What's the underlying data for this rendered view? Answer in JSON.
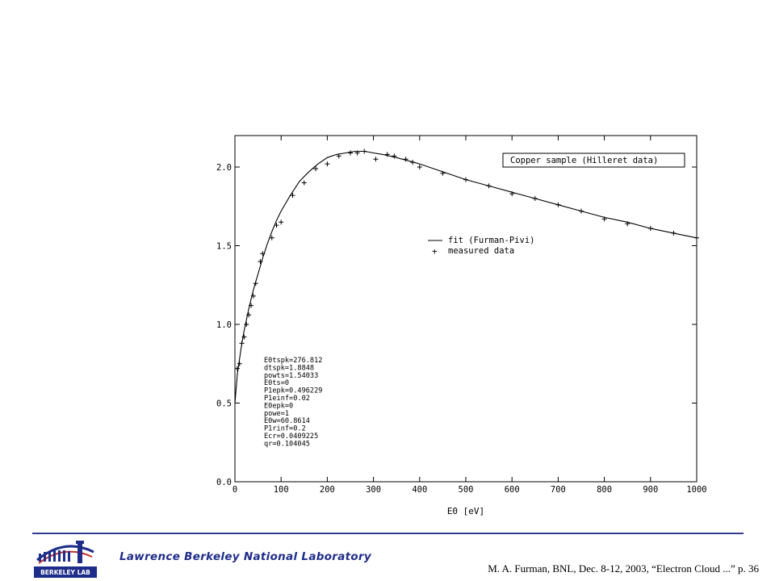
{
  "chart_data": {
    "type": "line",
    "title": "Copper sample (Hilleret data)",
    "xlabel": "E0 [eV]",
    "ylabel": "",
    "xlim": [
      0,
      1000
    ],
    "ylim": [
      0,
      2.2
    ],
    "x_ticks": [
      "0",
      "100",
      "200",
      "300",
      "400",
      "500",
      "600",
      "700",
      "800",
      "900",
      "1000"
    ],
    "y_ticks": [
      "0.0",
      "0.5",
      "1.0",
      "1.5",
      "2.0"
    ],
    "grid": false,
    "legend_position": "center-right",
    "series": [
      {
        "name": "fit (Furman-Pivi)",
        "style": "line",
        "x": [
          0,
          5,
          10,
          15,
          20,
          25,
          30,
          35,
          40,
          45,
          50,
          60,
          70,
          80,
          90,
          100,
          120,
          140,
          160,
          180,
          200,
          220,
          240,
          260,
          280,
          300,
          320,
          350,
          400,
          450,
          500,
          550,
          600,
          650,
          700,
          750,
          800,
          850,
          900,
          950,
          1000
        ],
        "y": [
          0.5,
          0.68,
          0.78,
          0.88,
          0.96,
          1.03,
          1.1,
          1.16,
          1.22,
          1.27,
          1.32,
          1.42,
          1.51,
          1.59,
          1.66,
          1.72,
          1.82,
          1.91,
          1.97,
          2.02,
          2.06,
          2.08,
          2.09,
          2.1,
          2.1,
          2.09,
          2.08,
          2.06,
          2.02,
          1.97,
          1.92,
          1.88,
          1.84,
          1.8,
          1.76,
          1.72,
          1.68,
          1.65,
          1.61,
          1.58,
          1.55
        ]
      },
      {
        "name": "measured data",
        "style": "markers",
        "x": [
          5,
          10,
          15,
          20,
          25,
          30,
          35,
          40,
          45,
          55,
          60,
          80,
          90,
          100,
          125,
          150,
          175,
          200,
          225,
          250,
          265,
          280,
          305,
          330,
          345,
          370,
          385,
          400,
          450,
          500,
          550,
          600,
          650,
          700,
          750,
          800,
          850,
          900,
          950,
          1000
        ],
        "y": [
          0.72,
          0.75,
          0.88,
          0.92,
          1.0,
          1.06,
          1.12,
          1.18,
          1.26,
          1.4,
          1.45,
          1.55,
          1.63,
          1.65,
          1.82,
          1.9,
          1.99,
          2.02,
          2.07,
          2.09,
          2.09,
          2.1,
          2.05,
          2.08,
          2.07,
          2.05,
          2.03,
          2.0,
          1.96,
          1.92,
          1.88,
          1.83,
          1.8,
          1.76,
          1.72,
          1.67,
          1.64,
          1.61,
          1.58,
          1.55
        ]
      }
    ],
    "annotations": [
      "E0tspk=276.812",
      "dtspk=1.8848",
      "powts=1.54033",
      "E0ts=0",
      "P1epk=0.496229",
      "P1einf=0.02",
      "E0epk=0",
      "powe=1",
      "E0w=60.8614",
      "P1rinf=0.2",
      "Ecr=0.0409225",
      "qr=0.104045"
    ]
  },
  "footer": {
    "lab_name": "Lawrence Berkeley National Laboratory",
    "citation": "M. A. Furman, BNL, Dec. 8-12, 2003, “Electron Cloud ...”  p. 36",
    "logo_text": "BERKELEY LAB",
    "accent_color": "#1f2d8a"
  }
}
